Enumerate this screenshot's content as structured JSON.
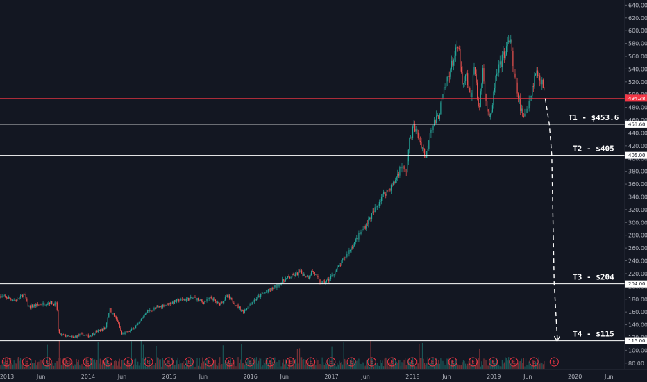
{
  "chart_data": {
    "type": "candlestick",
    "price_axis": {
      "ticks": [
        "640.00",
        "620.00",
        "600.00",
        "580.00",
        "560.00",
        "540.00",
        "520.00",
        "500.00",
        "480.00",
        "460.00",
        "440.00",
        "420.00",
        "400.00",
        "380.00",
        "360.00",
        "340.00",
        "320.00",
        "300.00",
        "280.00",
        "260.00",
        "240.00",
        "220.00",
        "200.00",
        "180.00",
        "160.00",
        "140.00",
        "120.00",
        "100.00",
        "80.00"
      ],
      "range": [
        70,
        648
      ]
    },
    "time_axis": {
      "labels": [
        "2013",
        "Jun",
        "2014",
        "Jun",
        "2015",
        "Jun",
        "2016",
        "Jun",
        "2017",
        "Jun",
        "2018",
        "Jun",
        "2019",
        "Jun",
        "2020",
        "Jun"
      ],
      "range": [
        2013.0,
        2020.7
      ]
    },
    "price_series": [
      [
        2013.0,
        185
      ],
      [
        2013.1,
        182
      ],
      [
        2013.2,
        178
      ],
      [
        2013.3,
        188
      ],
      [
        2013.35,
        168
      ],
      [
        2013.5,
        172
      ],
      [
        2013.6,
        175
      ],
      [
        2013.7,
        172
      ],
      [
        2013.72,
        125
      ],
      [
        2013.9,
        120
      ],
      [
        2014.0,
        125
      ],
      [
        2014.1,
        122
      ],
      [
        2014.2,
        130
      ],
      [
        2014.3,
        135
      ],
      [
        2014.35,
        165
      ],
      [
        2014.45,
        145
      ],
      [
        2014.5,
        125
      ],
      [
        2014.6,
        130
      ],
      [
        2014.7,
        140
      ],
      [
        2014.8,
        160
      ],
      [
        2015.0,
        170
      ],
      [
        2015.2,
        178
      ],
      [
        2015.4,
        182
      ],
      [
        2015.5,
        175
      ],
      [
        2015.6,
        182
      ],
      [
        2015.7,
        172
      ],
      [
        2015.8,
        185
      ],
      [
        2016.0,
        160
      ],
      [
        2016.1,
        175
      ],
      [
        2016.2,
        185
      ],
      [
        2016.4,
        200
      ],
      [
        2016.5,
        210
      ],
      [
        2016.7,
        222
      ],
      [
        2016.8,
        215
      ],
      [
        2016.85,
        225
      ],
      [
        2016.95,
        205
      ],
      [
        2017.05,
        210
      ],
      [
        2017.2,
        235
      ],
      [
        2017.3,
        255
      ],
      [
        2017.5,
        295
      ],
      [
        2017.6,
        315
      ],
      [
        2017.7,
        340
      ],
      [
        2017.85,
        360
      ],
      [
        2017.95,
        390
      ],
      [
        2018.0,
        375
      ],
      [
        2018.05,
        430
      ],
      [
        2018.1,
        450
      ],
      [
        2018.2,
        420
      ],
      [
        2018.25,
        400
      ],
      [
        2018.3,
        445
      ],
      [
        2018.4,
        465
      ],
      [
        2018.5,
        520
      ],
      [
        2018.6,
        560
      ],
      [
        2018.65,
        575
      ],
      [
        2018.7,
        510
      ],
      [
        2018.75,
        530
      ],
      [
        2018.8,
        490
      ],
      [
        2018.85,
        550
      ],
      [
        2018.9,
        470
      ],
      [
        2018.95,
        540
      ],
      [
        2019.0,
        480
      ],
      [
        2019.05,
        460
      ],
      [
        2019.1,
        520
      ],
      [
        2019.2,
        560
      ],
      [
        2019.3,
        590
      ],
      [
        2019.32,
        540
      ],
      [
        2019.38,
        500
      ],
      [
        2019.45,
        460
      ],
      [
        2019.55,
        505
      ],
      [
        2019.6,
        535
      ],
      [
        2019.65,
        530
      ],
      [
        2019.7,
        510
      ],
      [
        2019.72,
        494
      ]
    ],
    "projection": [
      [
        2019.72,
        494
      ],
      [
        2019.77,
        453.6
      ],
      [
        2019.8,
        405
      ],
      [
        2019.83,
        204
      ],
      [
        2019.87,
        115
      ]
    ],
    "levels": [
      {
        "label": "T1 - $453.6",
        "value": 453.6,
        "tag": "453.60"
      },
      {
        "label": "T2 - $405",
        "value": 405,
        "tag": "405.00"
      },
      {
        "label": "T3 - $204",
        "value": 204,
        "tag": "204.00"
      },
      {
        "label": "T4 - $115",
        "value": 115,
        "tag": "115.00"
      }
    ],
    "current_price": {
      "value": 494.38,
      "tag": "494.38",
      "color": "#f23645"
    },
    "earnings_marker": "E",
    "earnings_dates": [
      2013.08,
      2013.33,
      2013.58,
      2013.83,
      2014.08,
      2014.33,
      2014.58,
      2014.83,
      2015.08,
      2015.33,
      2015.58,
      2015.83,
      2016.08,
      2016.33,
      2016.58,
      2016.83,
      2017.08,
      2017.33,
      2017.58,
      2017.83,
      2018.08,
      2018.33,
      2018.58,
      2018.83,
      2019.08,
      2019.33,
      2019.58,
      2019.83
    ],
    "colors": {
      "background": "#131722",
      "up": "#26a69a",
      "down": "#ef5350",
      "level_line": "#ffffff",
      "grid_axis": "#2a2e39"
    }
  }
}
